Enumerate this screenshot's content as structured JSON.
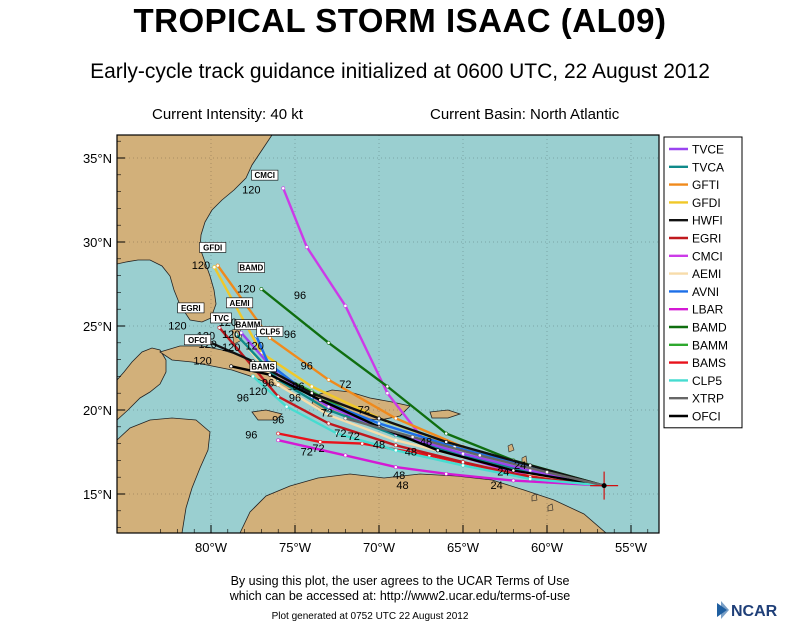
{
  "title": "TROPICAL STORM ISAAC (AL09)",
  "subtitle": "Early-cycle track guidance initialized at 0600 UTC, 22 August 2012",
  "info": {
    "intensity": "Current Intensity: 40 kt",
    "basin": "Current Basin: North Atlantic"
  },
  "footer": {
    "terms_line1": "By using this plot, the user agrees to the UCAR Terms of Use",
    "terms_line2": "which can be accessed at: http://www2.ucar.edu/terms-of-use",
    "generated": "Plot generated at 0752 UTC   22 August 2012",
    "logo_text": "NCAR"
  },
  "map": {
    "lat_labels": [
      "35°N",
      "30°N",
      "25°N",
      "20°N",
      "15°N"
    ],
    "lon_labels": [
      "80°W",
      "75°W",
      "70°W",
      "65°W",
      "60°W",
      "55°W"
    ],
    "colors": {
      "ocean": "#9acfd0",
      "land": "#d2b07a"
    },
    "storm_position": {
      "lon": -56.6,
      "lat": 15.5
    }
  },
  "legend": [
    {
      "name": "TVCE",
      "color": "#9a44f0"
    },
    {
      "name": "TVCA",
      "color": "#0f8a8a"
    },
    {
      "name": "GFTI",
      "color": "#f08a1c"
    },
    {
      "name": "GFDI",
      "color": "#f0c828"
    },
    {
      "name": "HWFI",
      "color": "#111111"
    },
    {
      "name": "EGRI",
      "color": "#c0191e"
    },
    {
      "name": "CMCI",
      "color": "#cc3be8"
    },
    {
      "name": "AEMI",
      "color": "#f7dcaa"
    },
    {
      "name": "AVNI",
      "color": "#1c6fe8"
    },
    {
      "name": "LBAR",
      "color": "#d419d4"
    },
    {
      "name": "BAMD",
      "color": "#0f6e0f"
    },
    {
      "name": "BAMM",
      "color": "#2ea82e"
    },
    {
      "name": "BAMS",
      "color": "#e8121b"
    },
    {
      "name": "CLP5",
      "color": "#46dcd0"
    },
    {
      "name": "XTRP",
      "color": "#666666"
    },
    {
      "name": "OFCI",
      "color": "#000000"
    }
  ],
  "tracks": [
    {
      "model": "CMCI",
      "color": "#cc3be8",
      "points": [
        [
          -56.6,
          15.5
        ],
        [
          -62,
          16.3
        ],
        [
          -67,
          17.8
        ],
        [
          -69.5,
          21.0
        ],
        [
          -72,
          26.2
        ],
        [
          -74.3,
          29.7
        ],
        [
          -75.7,
          33.2
        ]
      ],
      "hour_labels": [
        {
          "text": "96",
          "lon": -74.7,
          "lat": 26.6
        },
        {
          "text": "120",
          "lon": -77.6,
          "lat": 32.9
        }
      ],
      "box_label": {
        "text": "CMCI",
        "lon": -76.8,
        "lat": 33.8
      }
    },
    {
      "model": "LBAR",
      "color": "#d419d4",
      "points": [
        [
          -56.6,
          15.5
        ],
        [
          -62,
          15.8
        ],
        [
          -66,
          16.2
        ],
        [
          -69,
          16.6
        ],
        [
          -72,
          17.3
        ],
        [
          -76,
          18.2
        ]
      ],
      "hour_labels": [
        {
          "text": "48",
          "lon": -68.8,
          "lat": 15.9
        },
        {
          "text": "72",
          "lon": -74.3,
          "lat": 17.3
        },
        {
          "text": "96",
          "lon": -77.6,
          "lat": 18.3
        }
      ],
      "box_label": null
    },
    {
      "model": "BAMS",
      "color": "#e8121b",
      "points": [
        [
          -56.6,
          15.5
        ],
        [
          -62,
          16.2
        ],
        [
          -67,
          17.3
        ],
        [
          -71,
          18.0
        ],
        [
          -73.5,
          18.1
        ],
        [
          -76,
          18.6
        ]
      ],
      "hour_labels": [
        {
          "text": "72",
          "lon": -73.6,
          "lat": 17.5
        }
      ],
      "box_label": null
    },
    {
      "model": "BAMM",
      "color": "#2ea82e",
      "points": [
        [
          -56.6,
          15.5
        ],
        [
          -62,
          16.5
        ],
        [
          -66.5,
          17.6
        ],
        [
          -70.5,
          19.2
        ],
        [
          -74,
          21.1
        ],
        [
          -77,
          22.6
        ]
      ],
      "hour_labels": [
        {
          "text": "96",
          "lon": -74.8,
          "lat": 21.2
        }
      ],
      "box_label": {
        "text": "BAMM",
        "lon": -77.8,
        "lat": 24.9
      }
    },
    {
      "model": "BAMD",
      "color": "#0f6e0f",
      "points": [
        [
          -56.6,
          15.5
        ],
        [
          -62,
          17.0
        ],
        [
          -66,
          18.6
        ],
        [
          -69.5,
          21.4
        ],
        [
          -73,
          24.0
        ],
        [
          -77,
          27.2
        ]
      ],
      "hour_labels": [
        {
          "text": "72",
          "lon": -72.0,
          "lat": 21.3
        },
        {
          "text": "96",
          "lon": -75.3,
          "lat": 24.3
        },
        {
          "text": "120",
          "lon": -77.9,
          "lat": 27.0
        }
      ],
      "box_label": {
        "text": "BAMD",
        "lon": -77.6,
        "lat": 28.3
      }
    },
    {
      "model": "GFTI",
      "color": "#f08a1c",
      "points": [
        [
          -56.6,
          15.5
        ],
        [
          -61,
          16.6
        ],
        [
          -65,
          17.8
        ],
        [
          -69,
          19.5
        ],
        [
          -73,
          21.8
        ],
        [
          -76.5,
          24.3
        ],
        [
          -79.6,
          28.6
        ]
      ],
      "hour_labels": [
        {
          "text": "72",
          "lon": -70.9,
          "lat": 19.8
        },
        {
          "text": "96",
          "lon": -74.3,
          "lat": 22.4
        }
      ],
      "box_label": null
    },
    {
      "model": "GFDI",
      "color": "#f0c828",
      "points": [
        [
          -56.6,
          15.5
        ],
        [
          -61,
          16.5
        ],
        [
          -65.5,
          17.9
        ],
        [
          -69.5,
          19.3
        ],
        [
          -74,
          21.4
        ],
        [
          -77,
          23.4
        ],
        [
          -79.8,
          28.5
        ]
      ],
      "hour_labels": [
        {
          "text": "120",
          "lon": -80.6,
          "lat": 28.4
        }
      ],
      "box_label": {
        "text": "GFDI",
        "lon": -79.9,
        "lat": 29.5
      }
    },
    {
      "model": "AEMI",
      "color": "#f7dcaa",
      "points": [
        [
          -56.6,
          15.5
        ],
        [
          -61,
          16.2
        ],
        [
          -65,
          17.2
        ],
        [
          -69,
          18.2
        ],
        [
          -73,
          19.7
        ],
        [
          -76,
          21.5
        ],
        [
          -78.3,
          24.3
        ]
      ],
      "hour_labels": [
        {
          "text": "120",
          "lon": -79.0,
          "lat": 25.0
        }
      ],
      "box_label": {
        "text": "AEMI",
        "lon": -78.3,
        "lat": 26.2
      }
    },
    {
      "model": "EGRI",
      "color": "#c0191e",
      "points": [
        [
          -56.6,
          15.5
        ],
        [
          -61,
          16.0
        ],
        [
          -65,
          16.9
        ],
        [
          -69,
          17.9
        ],
        [
          -73,
          19.2
        ],
        [
          -76,
          20.8
        ],
        [
          -79.5,
          24.9
        ]
      ],
      "hour_labels": [
        {
          "text": "120",
          "lon": -82.0,
          "lat": 24.8
        }
      ],
      "box_label": {
        "text": "EGRI",
        "lon": -81.2,
        "lat": 25.9
      }
    },
    {
      "model": "TVCA",
      "color": "#0f8a8a",
      "points": [
        [
          -56.6,
          15.5
        ],
        [
          -61,
          16.3
        ],
        [
          -65,
          17.3
        ],
        [
          -69,
          18.5
        ],
        [
          -73,
          20.0
        ],
        [
          -76,
          21.8
        ],
        [
          -78.5,
          24.5
        ]
      ],
      "hour_labels": [
        {
          "text": "120",
          "lon": -80.3,
          "lat": 24.2
        }
      ],
      "box_label": {
        "text": "TVC",
        "lon": -79.4,
        "lat": 25.3
      }
    },
    {
      "model": "TVCE",
      "color": "#9a44f0",
      "points": [
        [
          -56.6,
          15.5
        ],
        [
          -61,
          16.4
        ],
        [
          -65,
          17.4
        ],
        [
          -69,
          18.6
        ],
        [
          -73,
          20.2
        ],
        [
          -76,
          22.1
        ],
        [
          -78.2,
          24.6
        ]
      ],
      "hour_labels": [],
      "box_label": null
    },
    {
      "model": "AVNI",
      "color": "#1c6fe8",
      "points": [
        [
          -56.6,
          15.5
        ],
        [
          -61,
          16.6
        ],
        [
          -65.5,
          17.8
        ],
        [
          -70,
          19.2
        ],
        [
          -74,
          20.8
        ],
        [
          -76.6,
          22.8
        ],
        [
          -77.3,
          24.4
        ]
      ],
      "hour_labels": [
        {
          "text": "120",
          "lon": -77.4,
          "lat": 23.6
        }
      ],
      "box_label": {
        "text": "CLP5",
        "lon": -76.5,
        "lat": 24.5
      }
    },
    {
      "model": "HWFI",
      "color": "#111111",
      "points": [
        [
          -56.6,
          15.5
        ],
        [
          -61,
          16.7
        ],
        [
          -66,
          18.1
        ],
        [
          -70,
          19.5
        ],
        [
          -74,
          21.0
        ],
        [
          -77.5,
          22.9
        ],
        [
          -80,
          24.0
        ]
      ],
      "hour_labels": [
        {
          "text": "120",
          "lon": -80.2,
          "lat": 23.7
        }
      ],
      "box_label": {
        "text": "OFCI",
        "lon": -80.8,
        "lat": 24.0
      }
    },
    {
      "model": "OFCI",
      "color": "#000000",
      "points": [
        [
          -56.6,
          15.5
        ],
        [
          -62,
          16.4
        ],
        [
          -66.5,
          17.6
        ],
        [
          -70,
          19.0
        ],
        [
          -73.5,
          20.6
        ],
        [
          -76.5,
          22.1
        ],
        [
          -78.8,
          22.6
        ]
      ],
      "hour_labels": [
        {
          "text": "120",
          "lon": -80.5,
          "lat": 22.7
        }
      ],
      "box_label": null
    },
    {
      "model": "CLP5",
      "color": "#46dcd0",
      "points": [
        [
          -56.6,
          15.5
        ],
        [
          -61,
          15.9
        ],
        [
          -65,
          16.7
        ],
        [
          -69,
          17.6
        ],
        [
          -72.5,
          18.6
        ],
        [
          -75.5,
          20.2
        ],
        [
          -77.5,
          22.0
        ]
      ],
      "hour_labels": [
        {
          "text": "120",
          "lon": -77.2,
          "lat": 20.9
        }
      ],
      "box_label": {
        "text": "BAMS",
        "lon": -76.9,
        "lat": 22.4
      }
    },
    {
      "model": "XTRP",
      "color": "#666666",
      "points": [
        [
          -56.6,
          15.5
        ],
        [
          -60,
          16.3
        ],
        [
          -64,
          17.3
        ],
        [
          -68,
          18.4
        ],
        [
          -72,
          19.5
        ]
      ],
      "hour_labels": [],
      "box_label": null
    }
  ],
  "extra_labels": [
    {
      "text": "24",
      "lon": -63.0,
      "lat": 15.3
    },
    {
      "text": "24",
      "lon": -62.6,
      "lat": 16.1
    },
    {
      "text": "24",
      "lon": -61.6,
      "lat": 16.5
    },
    {
      "text": "48",
      "lon": -68.1,
      "lat": 17.3
    },
    {
      "text": "48",
      "lon": -67.2,
      "lat": 17.9
    },
    {
      "text": "48",
      "lon": -68.6,
      "lat": 15.3
    },
    {
      "text": "48",
      "lon": -70.0,
      "lat": 17.7
    },
    {
      "text": "72",
      "lon": -72.3,
      "lat": 18.4
    },
    {
      "text": "72",
      "lon": -71.5,
      "lat": 18.2
    },
    {
      "text": "72",
      "lon": -73.1,
      "lat": 19.6
    },
    {
      "text": "96",
      "lon": -78.1,
      "lat": 20.5
    },
    {
      "text": "96",
      "lon": -76.6,
      "lat": 21.4
    },
    {
      "text": "96",
      "lon": -76.0,
      "lat": 19.2
    },
    {
      "text": "96",
      "lon": -75.0,
      "lat": 20.5
    },
    {
      "text": "120",
      "lon": -78.8,
      "lat": 24.3
    },
    {
      "text": "120",
      "lon": -78.8,
      "lat": 23.5
    }
  ]
}
